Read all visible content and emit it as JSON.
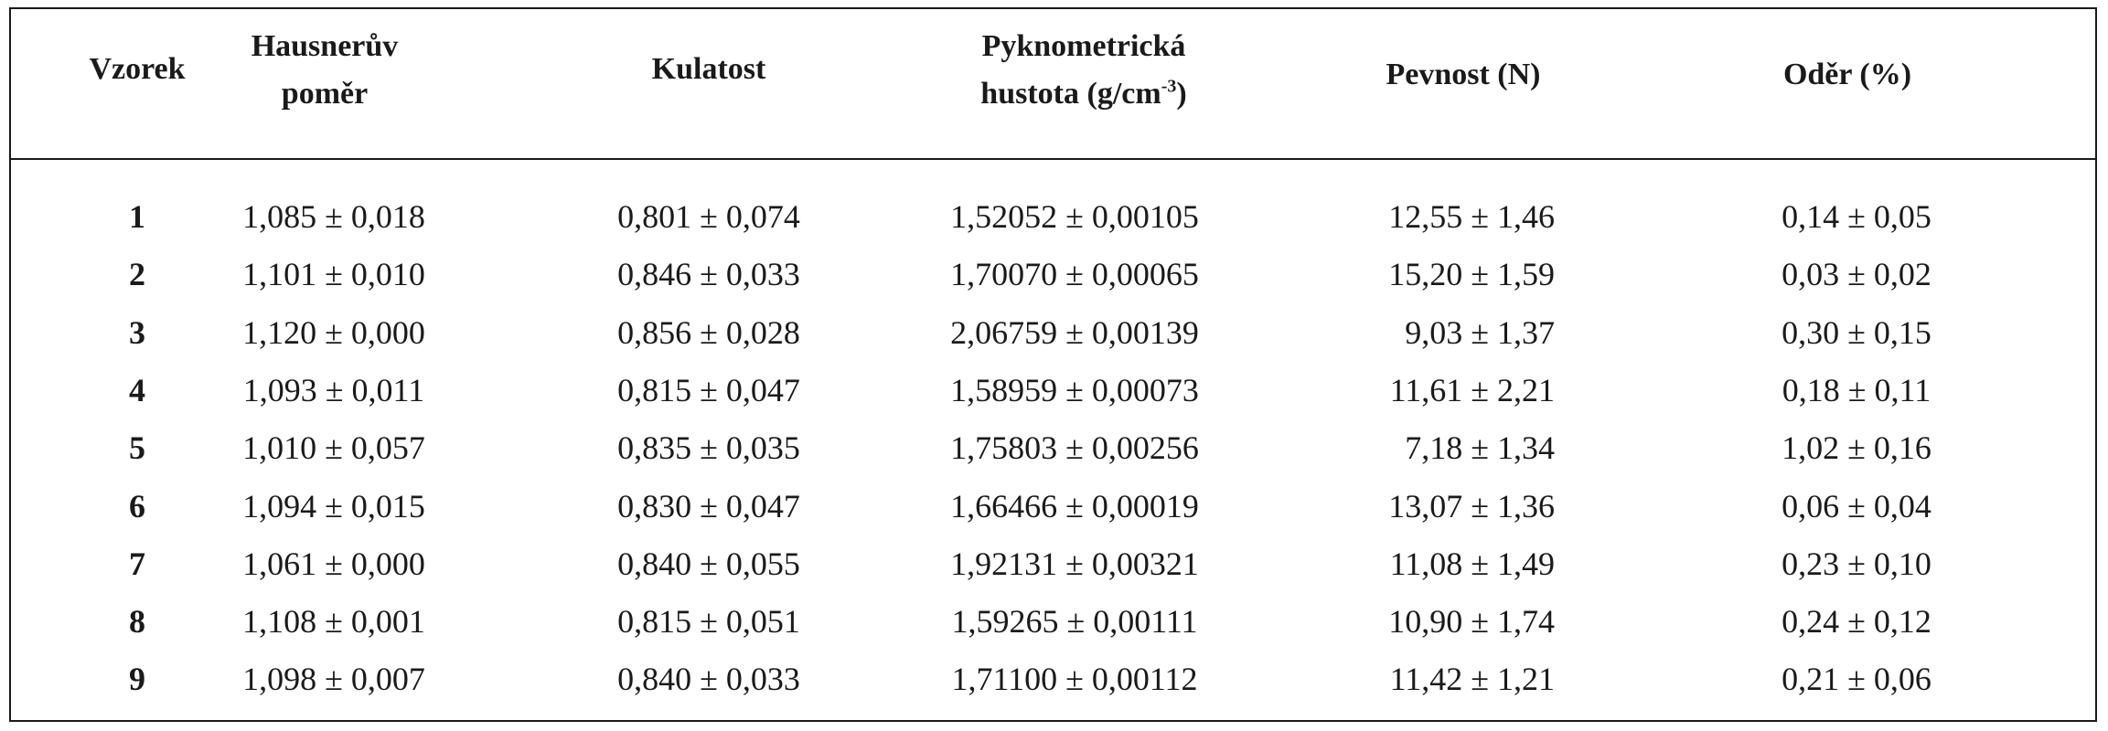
{
  "table": {
    "headers": {
      "sample": "Vzorek",
      "hausner_line1": "Hausnerův",
      "hausner_line2": "poměr",
      "roundness": "Kulatost",
      "density_line1": "Pyknometrická",
      "density_line2_prefix": "hustota (g/cm",
      "density_exp": "-3",
      "density_suffix": ")",
      "strength": "Pevnost (N)",
      "abrasion": "Oděr (%)"
    },
    "rows": [
      {
        "id": "1",
        "hausner": "1,085 ± 0,018",
        "roundness": "0,801 ± 0,074",
        "density": "1,52052 ± 0,00105",
        "strength": "12,55 ± 1,46",
        "abrasion": "0,14 ± 0,05"
      },
      {
        "id": "2",
        "hausner": "1,101 ± 0,010",
        "roundness": "0,846 ± 0,033",
        "density": "1,70070 ± 0,00065",
        "strength": "15,20 ± 1,59",
        "abrasion": "0,03 ± 0,02"
      },
      {
        "id": "3",
        "hausner": "1,120 ± 0,000",
        "roundness": "0,856 ± 0,028",
        "density": "2,06759 ± 0,00139",
        "strength": "9,03 ± 1,37",
        "abrasion": "0,30 ± 0,15"
      },
      {
        "id": "4",
        "hausner": "1,093 ± 0,011",
        "roundness": "0,815 ± 0,047",
        "density": "1,58959 ± 0,00073",
        "strength": "11,61 ± 2,21",
        "abrasion": "0,18 ± 0,11"
      },
      {
        "id": "5",
        "hausner": "1,010 ± 0,057",
        "roundness": "0,835 ± 0,035",
        "density": "1,75803 ± 0,00256",
        "strength": "7,18 ± 1,34",
        "abrasion": "1,02 ± 0,16"
      },
      {
        "id": "6",
        "hausner": "1,094 ± 0,015",
        "roundness": "0,830 ± 0,047",
        "density": "1,66466 ± 0,00019",
        "strength": "13,07 ± 1,36",
        "abrasion": "0,06 ± 0,04"
      },
      {
        "id": "7",
        "hausner": "1,061 ± 0,000",
        "roundness": "0,840 ± 0,055",
        "density": "1,92131 ± 0,00321",
        "strength": "11,08 ± 1,49",
        "abrasion": "0,23 ± 0,10"
      },
      {
        "id": "8",
        "hausner": "1,108 ± 0,001",
        "roundness": "0,815 ± 0,051",
        "density": "1,59265 ± 0,00111",
        "strength": "10,90 ± 1,74",
        "abrasion": "0,24 ± 0,12"
      },
      {
        "id": "9",
        "hausner": "1,098 ± 0,007",
        "roundness": "0,840 ± 0,033",
        "density": "1,71100 ± 0,00112",
        "strength": "11,42 ± 1,21",
        "abrasion": "0,21 ± 0,06"
      }
    ]
  }
}
